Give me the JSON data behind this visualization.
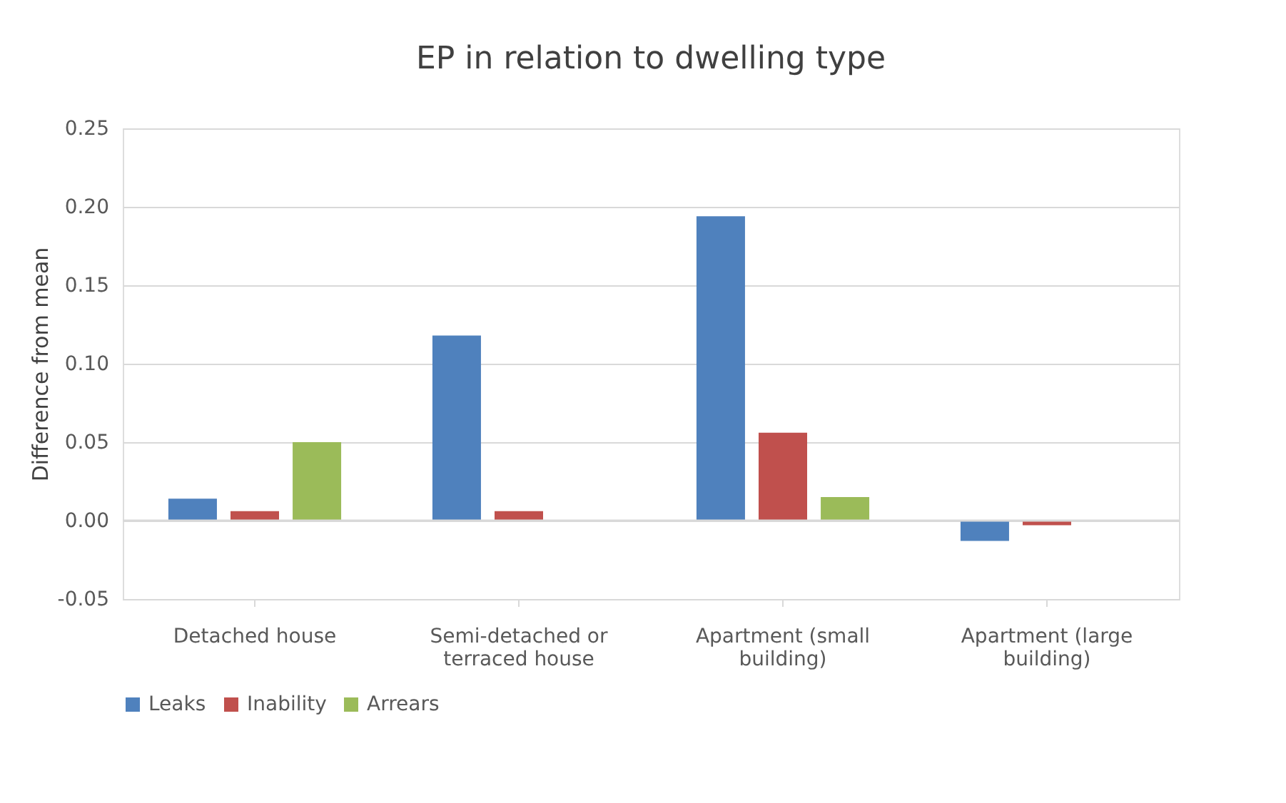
{
  "chart_data": {
    "type": "bar",
    "title": "EP in relation to dwelling type",
    "ylabel": "Difference from mean",
    "categories": [
      "Detached house",
      "Semi-detached or terraced house",
      "Apartment (small building)",
      "Apartment (large building)"
    ],
    "series": [
      {
        "name": "Leaks",
        "color": "#4f81bd",
        "values": [
          0.014,
          0.118,
          0.194,
          -0.013
        ]
      },
      {
        "name": "Inability",
        "color": "#c0504d",
        "values": [
          0.006,
          0.006,
          0.056,
          -0.003
        ]
      },
      {
        "name": "Arrears",
        "color": "#9bbb59",
        "values": [
          0.05,
          null,
          0.015,
          null
        ]
      }
    ],
    "ylim": [
      -0.05,
      0.25
    ],
    "yticks": [
      {
        "value": -0.05,
        "label": "-0.05"
      },
      {
        "value": 0,
        "label": "0.00"
      },
      {
        "value": 0.05,
        "label": "0.05"
      },
      {
        "value": 0.1,
        "label": "0.10"
      },
      {
        "value": 0.15,
        "label": "0.15"
      },
      {
        "value": 0.2,
        "label": "0.20"
      },
      {
        "value": 0.25,
        "label": "0.25"
      }
    ],
    "grid": "y",
    "legend": "bottom"
  }
}
